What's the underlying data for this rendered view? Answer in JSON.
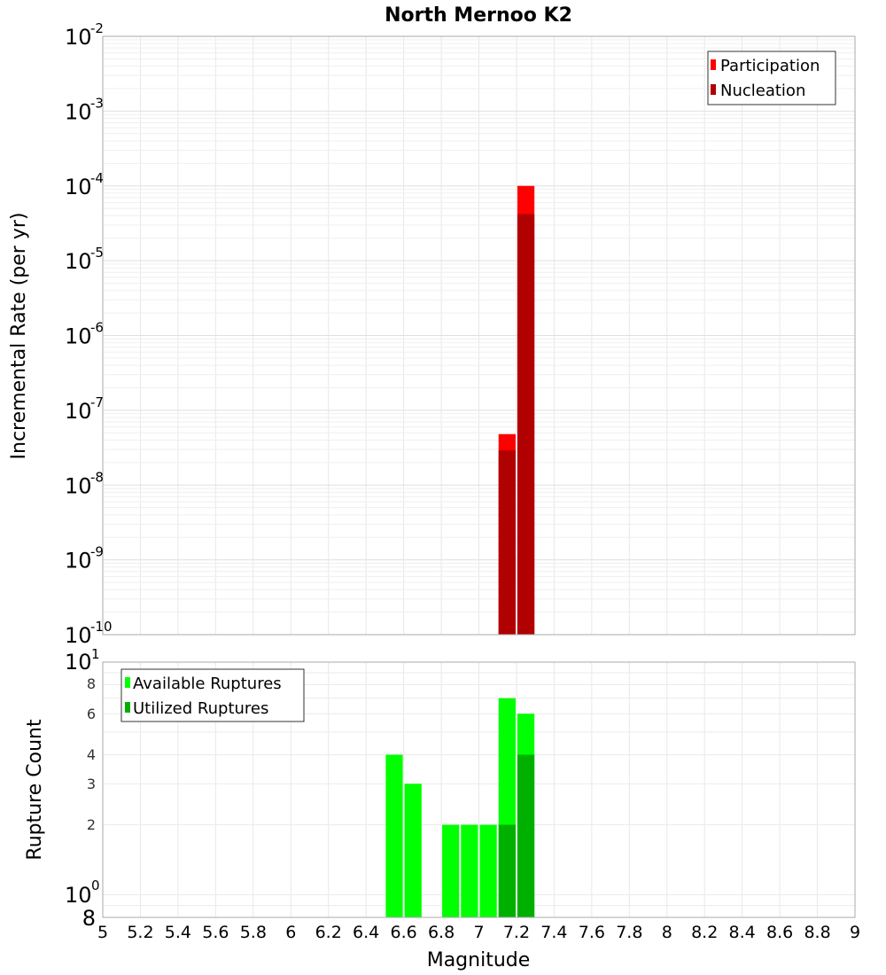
{
  "title": "North Mernoo K2",
  "colors": {
    "participation": "#ff0000",
    "nucleation": "#b00000",
    "available": "#00ff00",
    "utilized": "#00b000",
    "grid": "#e8e8e8",
    "frame": "#aaaaaa"
  },
  "top_panel": {
    "ylabel": "Incremental Rate (per yr)",
    "legend": [
      {
        "label": "Participation",
        "color": "#ff0000"
      },
      {
        "label": "Nucleation",
        "color": "#b00000"
      }
    ],
    "ytick_exponents": [
      "-2",
      "-3",
      "-4",
      "-5",
      "-6",
      "-7",
      "-8",
      "-9",
      "-10"
    ]
  },
  "bottom_panel": {
    "ylabel": "Rupture Count",
    "legend": [
      {
        "label": "Available Ruptures",
        "color": "#00ff00"
      },
      {
        "label": "Utilized Ruptures",
        "color": "#00b000"
      }
    ],
    "ytick_labels": {
      "top_base": "10",
      "top_exp": "1",
      "mid_base": "10",
      "mid_exp": "0",
      "minor": [
        "8",
        "6",
        "4",
        "3",
        "2"
      ],
      "bottom": "8"
    }
  },
  "xaxis": {
    "label": "Magnitude",
    "ticks": [
      "5",
      "5.2",
      "5.4",
      "5.6",
      "5.8",
      "6",
      "6.2",
      "6.4",
      "6.6",
      "6.8",
      "7",
      "7.2",
      "7.4",
      "7.6",
      "7.8",
      "8",
      "8.2",
      "8.4",
      "8.6",
      "8.8",
      "9"
    ]
  },
  "chart_data": [
    {
      "type": "bar",
      "title": "North Mernoo K2",
      "xlabel": "Magnitude",
      "ylabel": "Incremental Rate (per yr)",
      "yscale": "log",
      "xlim": [
        5,
        9
      ],
      "ylim": [
        1e-10,
        0.01
      ],
      "grid": true,
      "legend_position": "upper right",
      "x": [
        7.15,
        7.25
      ],
      "bin_width": 0.1,
      "series": [
        {
          "name": "Participation",
          "color": "#ff0000",
          "values": [
            4.8e-08,
            0.0001
          ]
        },
        {
          "name": "Nucleation",
          "color": "#b00000",
          "values": [
            2.9e-08,
            4.2e-05
          ]
        }
      ]
    },
    {
      "type": "bar",
      "xlabel": "Magnitude",
      "ylabel": "Rupture Count",
      "yscale": "log",
      "xlim": [
        5,
        9
      ],
      "ylim": [
        0.8,
        10
      ],
      "grid": true,
      "legend_position": "upper left",
      "x": [
        6.55,
        6.65,
        6.85,
        6.95,
        7.05,
        7.15,
        7.25
      ],
      "bin_width": 0.1,
      "series": [
        {
          "name": "Available Ruptures",
          "color": "#00ff00",
          "values": [
            4,
            3,
            2,
            2,
            2,
            7,
            6
          ]
        },
        {
          "name": "Utilized Ruptures",
          "color": "#00b000",
          "values": [
            0,
            0,
            0,
            0,
            0,
            2,
            4
          ]
        }
      ]
    }
  ]
}
